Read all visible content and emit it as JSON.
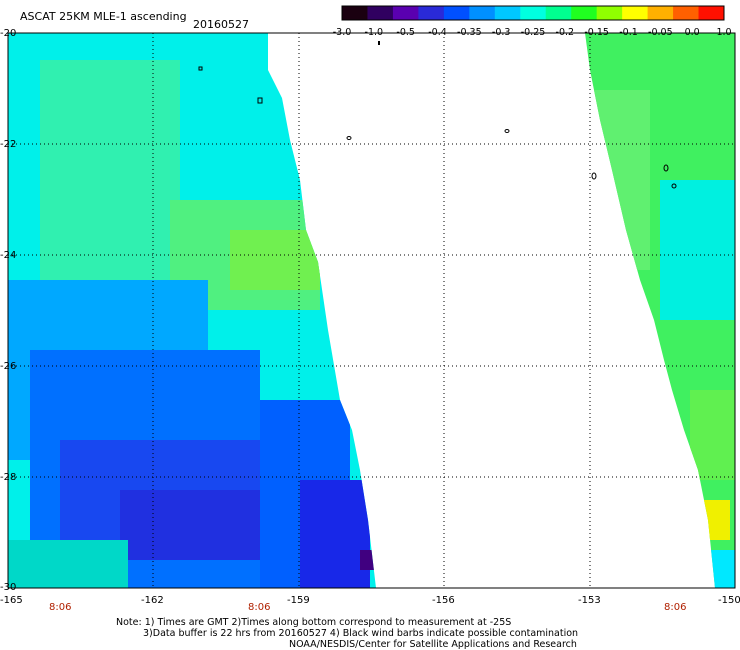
{
  "header": {
    "title": "ASCAT 25KM MLE-1 ascending",
    "date": "20160527"
  },
  "colorbar": {
    "labels": [
      "-3.0",
      "-1.0",
      "-0.5",
      "-0.4",
      "-0.35",
      "-0.3",
      "-0.25",
      "-0.2",
      "-0.15",
      "-0.1",
      "-0.05",
      "0.0",
      "1.0"
    ],
    "colors": [
      "#1a0010",
      "#300060",
      "#5a00b0",
      "#2a2ad8",
      "#0050ff",
      "#0090ff",
      "#00c8ff",
      "#00ffe0",
      "#00ff90",
      "#20ff20",
      "#90ff00",
      "#ffff00",
      "#ffb000",
      "#ff6000",
      "#ff1000"
    ]
  },
  "axes": {
    "lon_labels": [
      "-165",
      "-162",
      "-159",
      "-156",
      "-153",
      "-150"
    ],
    "lat_labels": [
      "-20",
      "-22",
      "-24",
      "-26",
      "-28",
      "-30"
    ]
  },
  "time_labels": [
    "8:06",
    "8:06",
    "8:06"
  ],
  "notes": {
    "line1": "Note: 1) Times are GMT 2)Times along bottom correspond to measurement at -25S",
    "line2": "3)Data buffer is 22 hrs from 20160527 4) Black wind barbs indicate possible contamination",
    "line3": "NOAA/NESDIS/Center for Satellite Applications and Research"
  }
}
